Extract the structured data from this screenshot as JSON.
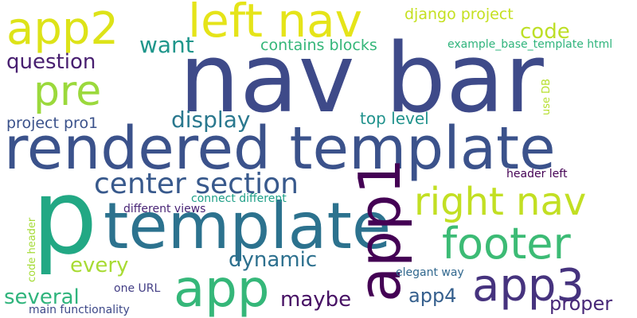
{
  "words": [
    {
      "text": "nav bar",
      "color": "#3e4a89"
    },
    {
      "text": "rendered template",
      "color": "#3b528b"
    },
    {
      "text": "p",
      "color": "#22a884"
    },
    {
      "text": "template",
      "color": "#2c728e"
    },
    {
      "text": "left nav",
      "color": "#e5e419"
    },
    {
      "text": "app1",
      "color": "#440154"
    },
    {
      "text": "app2",
      "color": "#dde318"
    },
    {
      "text": "app",
      "color": "#35b779"
    },
    {
      "text": "right nav",
      "color": "#c2df23"
    },
    {
      "text": "footer",
      "color": "#3cbb75"
    },
    {
      "text": "app3",
      "color": "#46337e"
    },
    {
      "text": "pre",
      "color": "#9bd93c"
    },
    {
      "text": "center section",
      "color": "#38598c"
    },
    {
      "text": "display",
      "color": "#2a788e"
    },
    {
      "text": "dynamic",
      "color": "#2d708e"
    },
    {
      "text": "want",
      "color": "#1f968b"
    },
    {
      "text": "code",
      "color": "#bddf26"
    },
    {
      "text": "question",
      "color": "#481f70"
    },
    {
      "text": "every",
      "color": "#a8db34"
    },
    {
      "text": "several",
      "color": "#2fb47c"
    },
    {
      "text": "maybe",
      "color": "#471164"
    },
    {
      "text": "proper",
      "color": "#482878"
    },
    {
      "text": "app4",
      "color": "#355f8d"
    },
    {
      "text": "django project",
      "color": "#c5e021"
    },
    {
      "text": "contains blocks",
      "color": "#34b679"
    },
    {
      "text": "top level",
      "color": "#20928c"
    },
    {
      "text": "project pro1",
      "color": "#3b528b"
    },
    {
      "text": "example_base_template html",
      "color": "#2fb47c"
    },
    {
      "text": "use DB",
      "color": "#b5de2b"
    },
    {
      "text": "header left",
      "color": "#440154"
    },
    {
      "text": "connect different",
      "color": "#1f9f88"
    },
    {
      "text": "different views",
      "color": "#482475"
    },
    {
      "text": "code header",
      "color": "#a5db36"
    },
    {
      "text": "elegant way",
      "color": "#31688e"
    },
    {
      "text": "one URL",
      "color": "#433e85"
    },
    {
      "text": "main functionality",
      "color": "#3e4989"
    }
  ]
}
